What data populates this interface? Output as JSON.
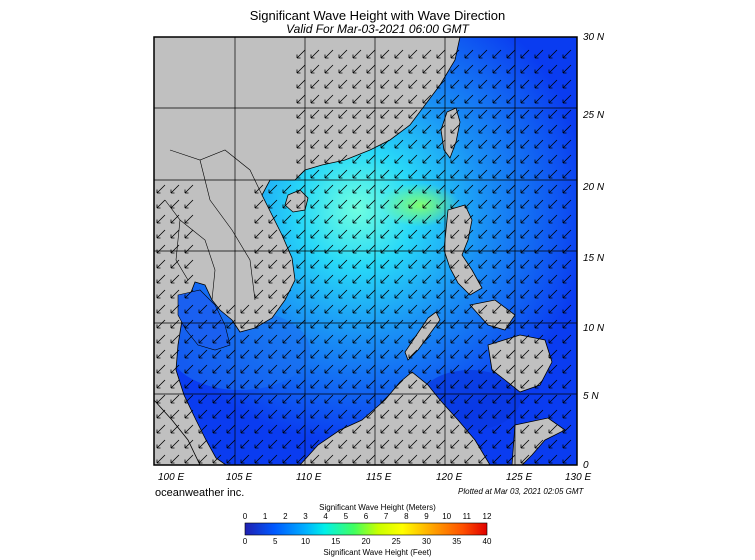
{
  "title": "Significant Wave Height with Wave Direction",
  "subtitle": "Valid For Mar-03-2021 06:00 GMT",
  "credit": "oceanweather inc.",
  "plotted": "Plotted at Mar 03, 2021 02:05 GMT",
  "map": {
    "lon_range": [
      100,
      130
    ],
    "lat_range": [
      0,
      30
    ],
    "lon_labels": [
      "100 E",
      "105 E",
      "110 E",
      "115 E",
      "120 E",
      "125 E",
      "130 E"
    ],
    "lat_labels": [
      "30 N",
      "25 N",
      "20 N",
      "15 N",
      "10 N",
      "5 N",
      "0"
    ],
    "land_color": "#c0c0c0",
    "ocean_color": "#0a3cf0",
    "grid_color": "#000000",
    "arrow_icon": "wave-direction-arrow-icon"
  },
  "colorbar": {
    "meters_title": "Significant Wave Height (Meters)",
    "meters_ticks": [
      "0",
      "1",
      "2",
      "3",
      "4",
      "5",
      "6",
      "7",
      "8",
      "9",
      "10",
      "11",
      "12"
    ],
    "feet_title": "Significant Wave Height (Feet)",
    "feet_ticks": [
      "0",
      "5",
      "10",
      "15",
      "20",
      "25",
      "30",
      "35",
      "40"
    ],
    "colors": [
      "#1e1ec8",
      "#0050ff",
      "#00a0ff",
      "#00e6e6",
      "#00ff78",
      "#a0ff00",
      "#ffff00",
      "#ffb400",
      "#ff6400",
      "#ff0000"
    ]
  }
}
